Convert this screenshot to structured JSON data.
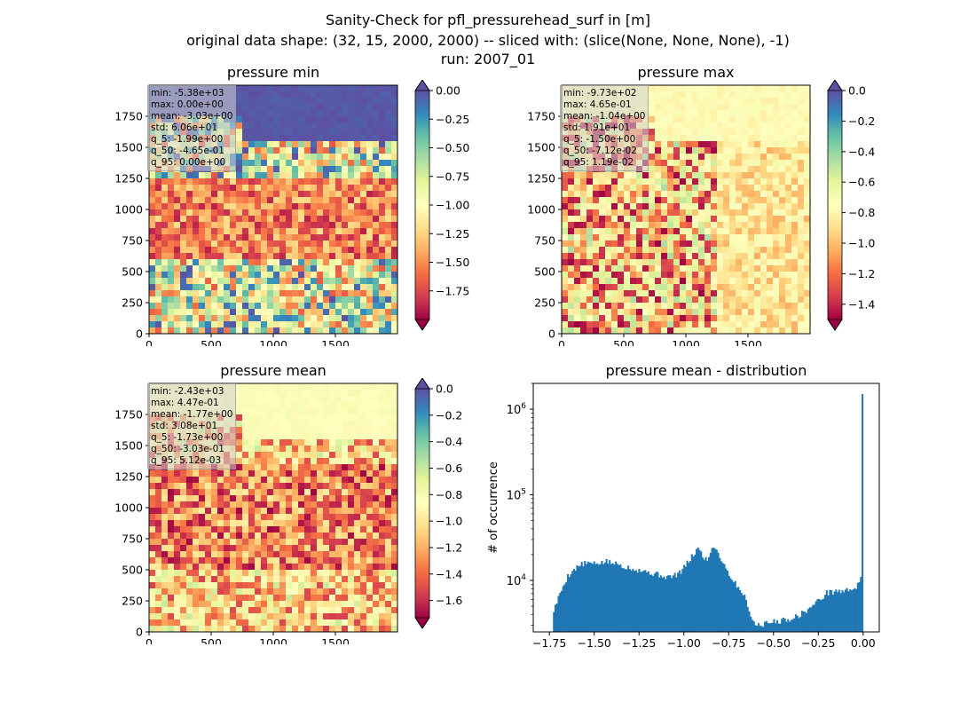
{
  "figure": {
    "title_line1": "Sanity-Check for pfl_pressurehead_surf in [m]",
    "title_line2": "original data shape: (32, 15, 2000, 2000) -- sliced with: (slice(None, None, None), -1)",
    "title_line3": "run: 2007_01"
  },
  "panels": {
    "min": {
      "title": "pressure min",
      "stats": [
        "min: -5.38e+03",
        "max: 0.00e+00",
        "mean: -3.03e+00",
        "std: 6.06e+01",
        "q_5: -1.99e+00",
        "q_50: -4.65e-01",
        "q_95: 0.00e+00"
      ]
    },
    "max": {
      "title": "pressure max",
      "stats": [
        "min: -9.73e+02",
        "max: 4.65e-01",
        "mean: -1.04e+00",
        "std: 1.91e+01",
        "q_5: -1.50e+00",
        "q_50: -7.12e-02",
        "q_95: 1.19e-02"
      ]
    },
    "mean": {
      "title": "pressure mean",
      "stats": [
        "min: -2.43e+03",
        "max: 4.47e-01",
        "mean: -1.77e+00",
        "std: 3.08e+01",
        "q_5: -1.73e+00",
        "q_50: -3.03e-01",
        "q_95: 5.12e-03"
      ]
    },
    "hist": {
      "title": "pressure mean - distribution",
      "ylabel": "# of occurrence"
    }
  },
  "chart_data": [
    {
      "type": "heatmap",
      "title": "pressure min",
      "colormap": "Spectral",
      "x_ticks": [
        "0",
        "500",
        "1000",
        "1500"
      ],
      "y_ticks": [
        "0",
        "250",
        "500",
        "750",
        "1000",
        "1250",
        "1500",
        "1750"
      ],
      "xlim": [
        0,
        2000
      ],
      "ylim": [
        0,
        2000
      ],
      "colorbar": {
        "range": [
          -2.0,
          0.0
        ],
        "ticks": [
          "0.00",
          "−0.25",
          "−0.50",
          "−0.75",
          "−1.00",
          "−1.25",
          "−1.50",
          "−1.75"
        ],
        "extend": "both"
      }
    },
    {
      "type": "heatmap",
      "title": "pressure max",
      "colormap": "Spectral",
      "x_ticks": [
        "0",
        "500",
        "1000",
        "1500"
      ],
      "y_ticks": [
        "0",
        "250",
        "500",
        "750",
        "1000",
        "1250",
        "1500",
        "1750"
      ],
      "xlim": [
        0,
        2000
      ],
      "ylim": [
        0,
        2000
      ],
      "colorbar": {
        "range": [
          -1.5,
          0.0
        ],
        "ticks": [
          "0.0",
          "−0.2",
          "−0.4",
          "−0.6",
          "−0.8",
          "−1.0",
          "−1.2",
          "−1.4"
        ],
        "extend": "both"
      }
    },
    {
      "type": "heatmap",
      "title": "pressure mean",
      "colormap": "Spectral",
      "x_ticks": [
        "0",
        "500",
        "1000",
        "1500"
      ],
      "y_ticks": [
        "0",
        "250",
        "500",
        "750",
        "1000",
        "1250",
        "1500",
        "1750"
      ],
      "xlim": [
        0,
        2000
      ],
      "ylim": [
        0,
        2000
      ],
      "colorbar": {
        "range": [
          -1.73,
          0.0
        ],
        "ticks": [
          "0.0",
          "−0.2",
          "−0.4",
          "−0.6",
          "−0.8",
          "−1.0",
          "−1.2",
          "−1.4",
          "−1.6"
        ],
        "extend": "both"
      }
    },
    {
      "type": "bar",
      "title": "pressure mean - distribution",
      "ylabel": "# of occurrence",
      "yscale": "log",
      "xlim": [
        -1.84,
        0.09
      ],
      "ylim": [
        2500,
        2000000
      ],
      "x_ticks": [
        "−1.75",
        "−1.50",
        "−1.25",
        "−1.00",
        "−0.75",
        "−0.50",
        "−0.25",
        "0.00"
      ],
      "y_ticks": [
        "10^4",
        "10^5",
        "10^6"
      ],
      "color": "#1f77b4",
      "bin_range": [
        -1.73,
        0.0
      ],
      "bins": 200,
      "profile": [
        [
          -1.73,
          4200
        ],
        [
          -1.71,
          5500
        ],
        [
          -1.69,
          7000
        ],
        [
          -1.67,
          9000
        ],
        [
          -1.65,
          11000
        ],
        [
          -1.63,
          12500
        ],
        [
          -1.6,
          14000
        ],
        [
          -1.57,
          15500
        ],
        [
          -1.53,
          16000
        ],
        [
          -1.5,
          15500
        ],
        [
          -1.47,
          16000
        ],
        [
          -1.43,
          16500
        ],
        [
          -1.4,
          16000
        ],
        [
          -1.37,
          15500
        ],
        [
          -1.33,
          14500
        ],
        [
          -1.3,
          14000
        ],
        [
          -1.27,
          13500
        ],
        [
          -1.23,
          13000
        ],
        [
          -1.2,
          12500
        ],
        [
          -1.17,
          12000
        ],
        [
          -1.13,
          11500
        ],
        [
          -1.1,
          11000
        ],
        [
          -1.07,
          11000
        ],
        [
          -1.03,
          12000
        ],
        [
          -1.0,
          14000
        ],
        [
          -0.97,
          17000
        ],
        [
          -0.94,
          21000
        ],
        [
          -0.92,
          24000
        ],
        [
          -0.9,
          20000
        ],
        [
          -0.87,
          17000
        ],
        [
          -0.85,
          22000
        ],
        [
          -0.83,
          26000
        ],
        [
          -0.81,
          21000
        ],
        [
          -0.78,
          16000
        ],
        [
          -0.75,
          12000
        ],
        [
          -0.71,
          9000
        ],
        [
          -0.67,
          7000
        ],
        [
          -0.64,
          5000
        ],
        [
          -0.62,
          3500
        ],
        [
          -0.6,
          3000
        ],
        [
          -0.55,
          3100
        ],
        [
          -0.5,
          3300
        ],
        [
          -0.45,
          3400
        ],
        [
          -0.4,
          3600
        ],
        [
          -0.35,
          4000
        ],
        [
          -0.3,
          4700
        ],
        [
          -0.25,
          5800
        ],
        [
          -0.2,
          7200
        ],
        [
          -0.15,
          7500
        ],
        [
          -0.1,
          7500
        ],
        [
          -0.05,
          8200
        ],
        [
          -0.02,
          9000
        ],
        [
          -0.01,
          11000
        ],
        [
          -0.005,
          23000
        ],
        [
          0.0,
          1500000
        ]
      ]
    }
  ]
}
